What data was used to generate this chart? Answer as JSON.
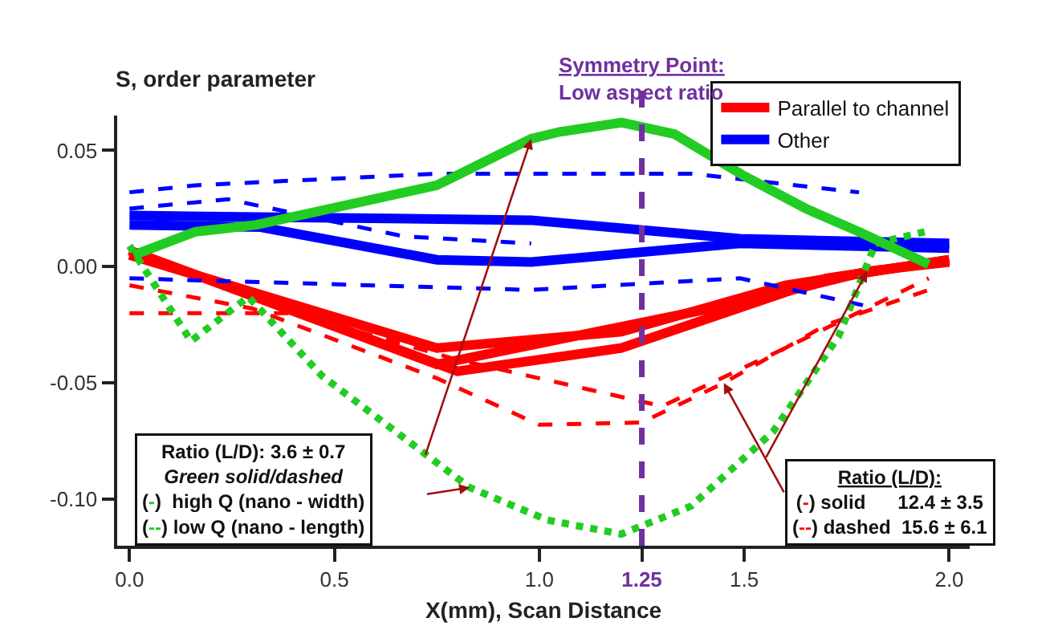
{
  "chart_data": {
    "type": "line",
    "ylabel": "S, order parameter",
    "xlabel": "X(mm), Scan Distance",
    "xlim": [
      -0.03,
      2.05
    ],
    "ylim": [
      -0.12,
      0.065
    ],
    "xticks": [
      {
        "value": 0,
        "label": "0.0"
      },
      0.5,
      {
        "value": 1,
        "label": "1.0"
      },
      1.25,
      1.5,
      {
        "value": 2,
        "label": "2.0"
      }
    ],
    "yticks": [
      0.05,
      {
        "value": 0,
        "label": "0.00"
      },
      -0.05,
      {
        "value": -0.1,
        "label": "-0.10"
      }
    ],
    "legend": "top right",
    "marker": "none",
    "series": [
      {
        "name": "Parallel to channel",
        "color": "#ff0000",
        "line_style": "solid",
        "x": [
          0,
          0.75,
          1.5,
          1.8,
          2.0
        ],
        "values": [
          0.007,
          -0.042,
          -0.015,
          -0.002,
          0.002
        ]
      },
      {
        "color": "#ff0000",
        "line_style": "solid",
        "x": [
          0,
          0.75,
          1.2,
          1.6,
          2.0
        ],
        "values": [
          0.005,
          -0.035,
          -0.028,
          -0.008,
          0.003
        ]
      },
      {
        "color": "#ff0000",
        "line_style": "solid",
        "x": [
          0,
          0.8,
          1.2,
          1.7,
          2.0
        ],
        "values": [
          0.007,
          -0.045,
          -0.035,
          -0.005,
          0.003
        ]
      },
      {
        "color": "#ff0000",
        "line_style": "dashed",
        "x": [
          0,
          0.3,
          0.75,
          1.0,
          1.25,
          1.45,
          1.7,
          1.95
        ],
        "values": [
          -0.008,
          -0.018,
          -0.048,
          -0.068,
          -0.067,
          -0.05,
          -0.025,
          -0.01
        ]
      },
      {
        "color": "#ff0000",
        "line_style": "dashed",
        "x": [
          0,
          0.4,
          0.8,
          1.3,
          1.6,
          1.95
        ],
        "values": [
          -0.02,
          -0.02,
          -0.04,
          -0.06,
          -0.035,
          -0.005
        ]
      },
      {
        "name": "Other",
        "color": "#0000ff",
        "line_style": "solid",
        "x": [
          0,
          0.98,
          1.49,
          2.0
        ],
        "values": [
          0.022,
          0.02,
          0.012,
          0.01
        ]
      },
      {
        "color": "#0000ff",
        "line_style": "solid",
        "x": [
          0,
          0.32,
          0.75,
          0.98,
          1.49,
          2.0
        ],
        "values": [
          0.018,
          0.017,
          0.003,
          0.002,
          0.01,
          0.008
        ]
      },
      {
        "color": "#0000ff",
        "line_style": "dashed",
        "x": [
          0,
          0.16,
          0.75,
          1.0,
          1.37,
          1.78
        ],
        "values": [
          0.032,
          0.035,
          0.04,
          0.04,
          0.04,
          0.032
        ]
      },
      {
        "color": "#0000ff",
        "line_style": "dashed",
        "x": [
          0,
          0.24,
          0.67,
          0.98
        ],
        "values": [
          0.025,
          0.029,
          0.013,
          0.01
        ]
      },
      {
        "color": "#0000ff",
        "line_style": "dashed",
        "x": [
          0,
          0.98,
          1.49,
          1.8
        ],
        "values": [
          -0.005,
          -0.01,
          -0.005,
          -0.017
        ]
      },
      {
        "color": "#22cc22",
        "line_style": "solid",
        "x": [
          0.01,
          0.16,
          0.31,
          0.75,
          0.98,
          1.05,
          1.2,
          1.33,
          1.5,
          1.65,
          1.78,
          1.95
        ],
        "values": [
          0.005,
          0.015,
          0.018,
          0.035,
          0.055,
          0.058,
          0.062,
          0.057,
          0.039,
          0.025,
          0.015,
          0.001
        ]
      },
      {
        "color": "#22cc22",
        "line_style": "dotted",
        "x": [
          0,
          0.15,
          0.29,
          0.47,
          0.83,
          1.02,
          1.2,
          1.37,
          1.57,
          1.73,
          1.82,
          1.94
        ],
        "values": [
          0.009,
          -0.032,
          -0.013,
          -0.047,
          -0.095,
          -0.109,
          -0.115,
          -0.103,
          -0.071,
          -0.03,
          0.01,
          0.015
        ]
      }
    ],
    "ref_lines": [
      {
        "axis": "x",
        "value": 1.25,
        "label": "Symmetry Point:\nLow aspect ratio",
        "color": "#7030a0",
        "line_style": "dashed"
      }
    ],
    "annotations": [
      "Ratio (L/D): 3.6 ± 0.7\nGreen solid/dashed\n(-)  high Q (nano - width)\n(--) low Q (nano - length)",
      "Ratio (L/D):\n(-) solid      12.4 ± 3.5\n(--) dashed  15.6 ± 6.1"
    ]
  }
}
